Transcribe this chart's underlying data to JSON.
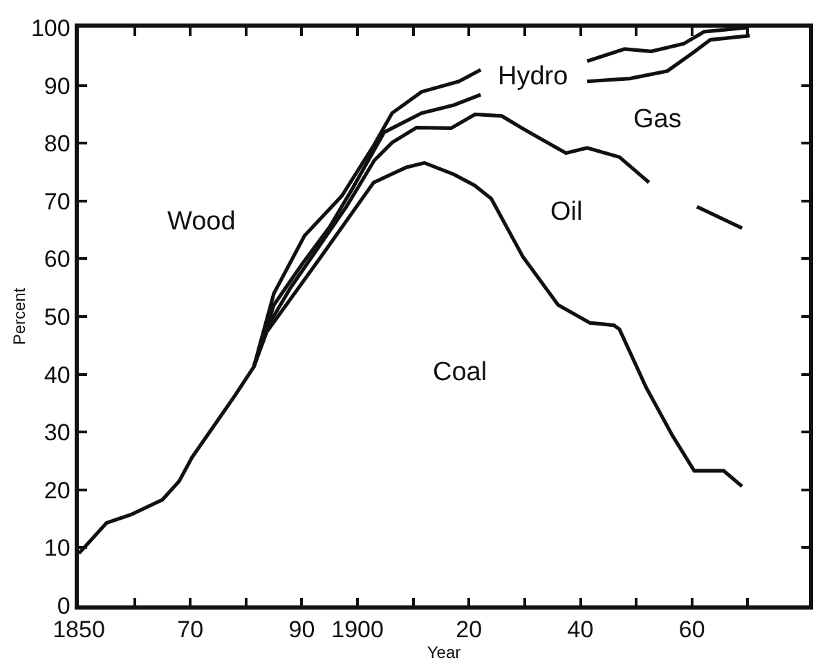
{
  "chart_data": {
    "type": "line",
    "xlabel": "Year",
    "ylabel": "Percent",
    "series": [
      {
        "color": "#111111",
        "x": [
          1850,
          1855,
          1859.3,
          1865,
          1868,
          1870.3,
          1878,
          1881.4,
          1883.7,
          1893.4,
          1902.9,
          1908.7,
          1912,
          1917.3,
          1921,
          1924,
          1929.7,
          1936,
          1941.7,
          1946,
          1947,
          1951.8,
          1956.5,
          1960.4,
          1965.7,
          1969
        ],
        "values": [
          9,
          14.3,
          15.7,
          18.3,
          21.5,
          25.6,
          36.3,
          41.3,
          47.3,
          60.3,
          73.2,
          75.8,
          76.6,
          74.6,
          72.7,
          70.4,
          60.3,
          52,
          48.9,
          48.5,
          47.8,
          37.7,
          29.4,
          23.3,
          23.3,
          20.6
        ]
      },
      {
        "color": "#111111",
        "x": [
          1881.4,
          1883.7,
          1888,
          1893,
          1898,
          1903,
          1906.2,
          1910.6,
          1916.8,
          1921.1,
          1925.9,
          1929.7,
          1937.4,
          1941.2,
          1947,
          1952.3,
          1956,
          1960.9,
          1969
        ],
        "values": [
          41.3,
          48,
          55,
          62,
          69,
          77,
          80.1,
          82.7,
          82.6,
          85,
          84.7,
          82.5,
          78.3,
          79.2,
          77.6,
          73.2,
          null,
          69,
          65.3
        ]
      },
      {
        "color": "#111111",
        "x": [
          1881.4,
          1885,
          1890,
          1895,
          1899,
          1904.8,
          1911.5,
          1917.3,
          1922.1,
          1930,
          1941.2,
          1948.9,
          1955.6,
          1960.4,
          1963.3,
          1970.4
        ],
        "values": [
          41.3,
          52,
          59,
          65.5,
          72,
          81.9,
          85.2,
          86.6,
          88.4,
          null,
          90.7,
          91.2,
          92.5,
          95.8,
          97.9,
          98.6
        ]
      },
      {
        "color": "#111111",
        "x": [
          1881.4,
          1885,
          1890.5,
          1897.2,
          1902.9,
          1906.2,
          1911.5,
          1918.2,
          1922.1,
          1930,
          1941.2,
          1947.9,
          1952.7,
          1958.5,
          1962.2,
          1970
        ],
        "values": [
          41.3,
          54,
          64,
          70.9,
          79.6,
          85.2,
          88.9,
          90.7,
          92.7,
          null,
          94.2,
          96.3,
          95.9,
          97.2,
          99.3,
          100
        ]
      }
    ],
    "annotations": [
      "Wood",
      "Hydro",
      "Gas",
      "Oil",
      "Coal"
    ],
    "xlim": [
      1850,
      1981
    ],
    "xticks": [
      1850,
      {
        "value": 1860,
        "label": null
      },
      {
        "value": 1870,
        "label": "70"
      },
      {
        "value": 1880,
        "label": null
      },
      {
        "value": 1890,
        "label": "90"
      },
      1900,
      {
        "value": 1910,
        "label": null
      },
      {
        "value": 1920,
        "label": "20"
      },
      {
        "value": 1930,
        "label": null
      },
      {
        "value": 1940,
        "label": "40"
      },
      {
        "value": 1950,
        "label": null
      },
      {
        "value": 1960,
        "label": "60"
      },
      {
        "value": 1970,
        "label": null
      }
    ],
    "ylim": [
      0,
      100
    ],
    "yticks": [
      0,
      10,
      20,
      30,
      40,
      50,
      60,
      70,
      80,
      90,
      100
    ],
    "grid": false,
    "marker": "none",
    "line_style": "solid"
  }
}
